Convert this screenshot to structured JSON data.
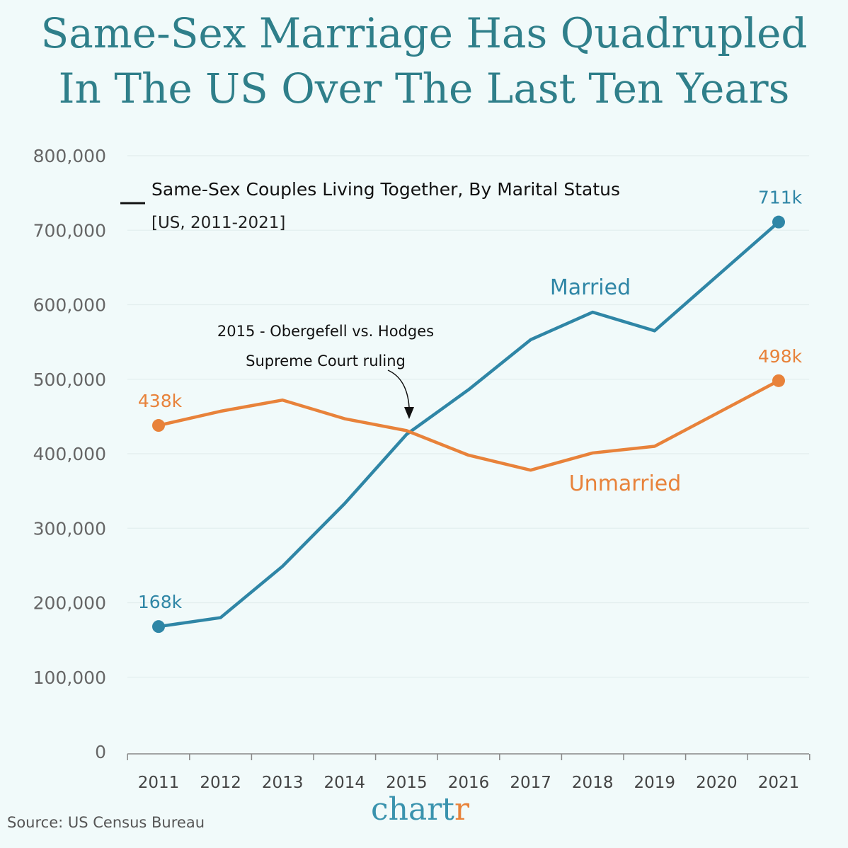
{
  "title": [
    "Same-Sex Marriage Has Quadrupled",
    "In The US Over The Last Ten Years"
  ],
  "source": "Source: US Census Bureau",
  "logo": "chartr",
  "chart_data": {
    "type": "line",
    "title": "Same-Sex Couples Living Together, By Marital Status",
    "subtitle": "[US, 2011-2021]",
    "x": [
      2011,
      2012,
      2013,
      2014,
      2015,
      2016,
      2017,
      2018,
      2019,
      2020,
      2021
    ],
    "x_tick_labels": [
      "2011",
      "2012",
      "2013",
      "2014",
      "2015",
      "2016",
      "2017",
      "2018",
      "2019",
      "2020",
      "2021"
    ],
    "ylim": [
      0,
      800000
    ],
    "y_tick_labels": [
      "0",
      "100,000",
      "200,000",
      "300,000",
      "400,000",
      "500,000",
      "600,000",
      "700,000",
      "800,000"
    ],
    "y_ticks": [
      0,
      100000,
      200000,
      300000,
      400000,
      500000,
      600000,
      700000,
      800000
    ],
    "grid": true,
    "series": [
      {
        "name": "Married",
        "color": "#2f86a6",
        "values": [
          168000,
          180000,
          249000,
          333000,
          426000,
          486000,
          553000,
          590000,
          565000,
          null,
          711000
        ],
        "start_label": "168k",
        "end_label": "711k"
      },
      {
        "name": "Unmarried",
        "color": "#e8823a",
        "values": [
          438000,
          457000,
          472000,
          447000,
          431000,
          398000,
          378000,
          401000,
          410000,
          null,
          498000
        ],
        "start_label": "438k",
        "end_label": "498k"
      }
    ],
    "annotation": [
      "2015 - Obergefell vs. Hodges",
      "Supreme Court ruling"
    ]
  }
}
